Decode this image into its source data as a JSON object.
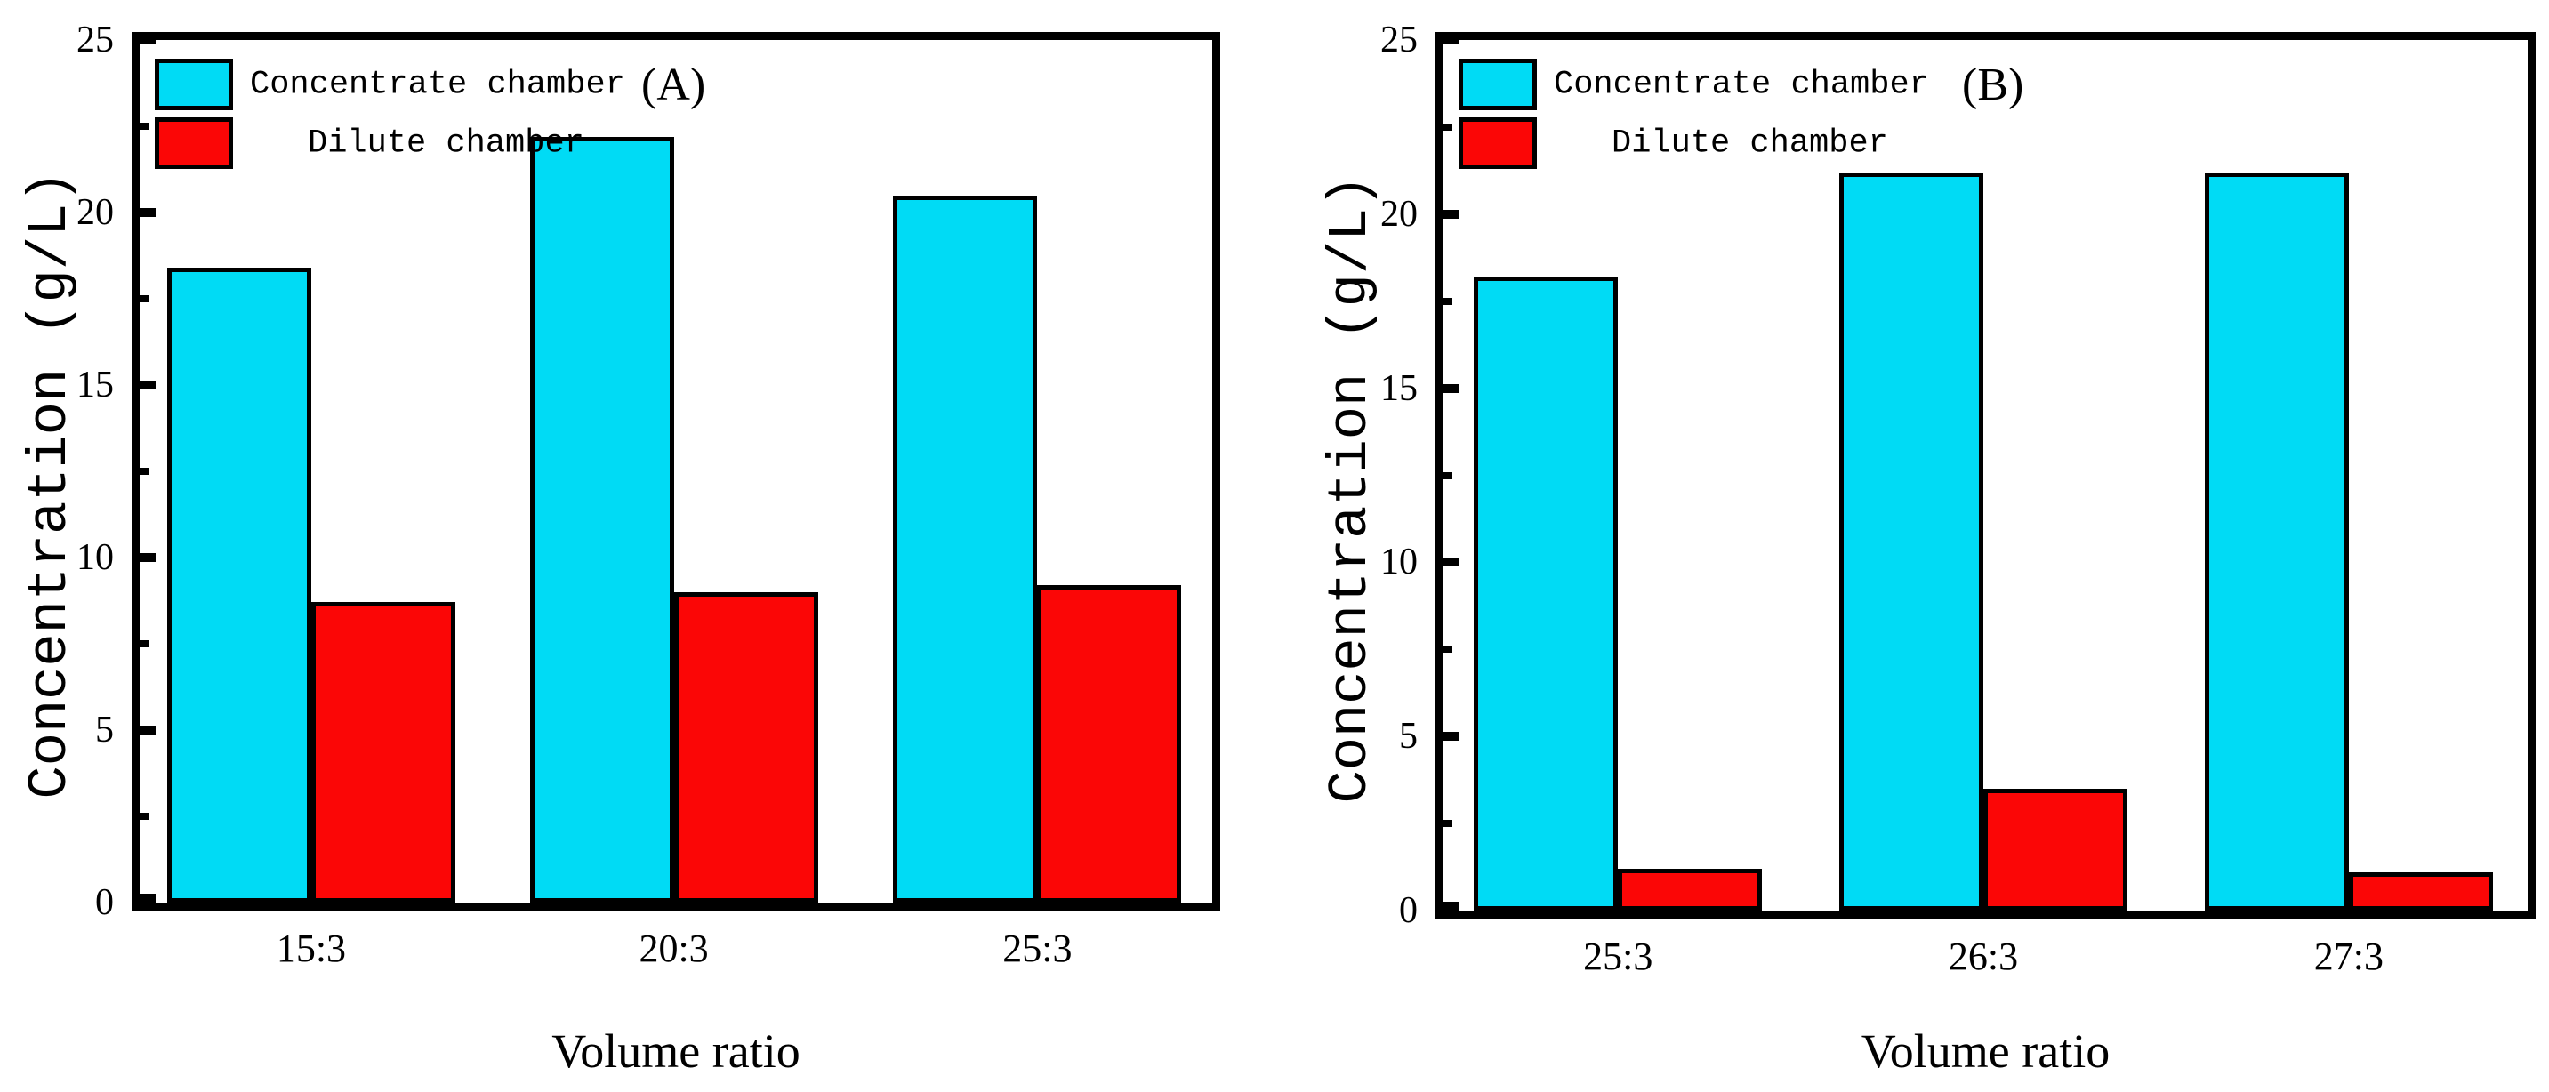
{
  "figure": {
    "background_color": "#ffffff",
    "axis_color": "#000000"
  },
  "chart_data": [
    {
      "type": "bar",
      "panel_label": "(A)",
      "categories": [
        "15:3",
        "20:3",
        "25:3"
      ],
      "series": [
        {
          "name": "Concentrate chamber",
          "color": "#00DBF5",
          "values": [
            18.4,
            22.2,
            20.5
          ]
        },
        {
          "name": "Dilute chamber",
          "color": "#FB0606",
          "values": [
            8.7,
            9.0,
            9.2
          ]
        }
      ],
      "xlabel": "Volume ratio",
      "ylabel": "Concentration (g/L)",
      "ylim": [
        0,
        25
      ],
      "yticks": [
        0,
        5,
        10,
        15,
        20,
        25
      ],
      "minor_tick_interval": 2.5,
      "legend_position": "top-left",
      "grid": false
    },
    {
      "type": "bar",
      "panel_label": "(B)",
      "categories": [
        "25:3",
        "26:3",
        "27:3"
      ],
      "series": [
        {
          "name": "Concentrate chamber",
          "color": "#00DBF5",
          "values": [
            18.2,
            21.2,
            21.2
          ]
        },
        {
          "name": "Dilute chamber",
          "color": "#FB0606",
          "values": [
            1.2,
            3.5,
            1.1
          ]
        }
      ],
      "xlabel": "Volume ratio",
      "ylabel": "Concentration (g/L)",
      "ylim": [
        0,
        25
      ],
      "yticks": [
        0,
        5,
        10,
        15,
        20,
        25
      ],
      "minor_tick_interval": 2.5,
      "legend_position": "top-left",
      "grid": false
    }
  ]
}
